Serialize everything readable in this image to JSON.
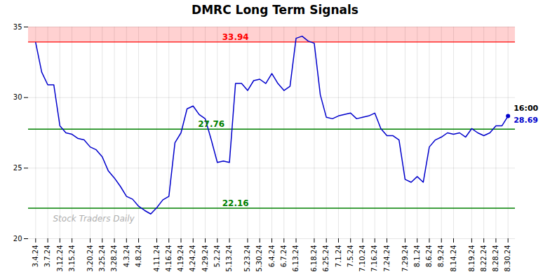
{
  "chart_data": {
    "type": "line",
    "title": "DMRC Long Term Signals",
    "categories": [
      "3.4.24",
      null,
      "3.7.24",
      null,
      "3.12.24",
      null,
      "3.15.24",
      null,
      null,
      "3.20.24",
      null,
      "3.25.24",
      null,
      "3.28.24",
      null,
      "4.3.24",
      null,
      "4.8.24",
      null,
      null,
      "4.11.24",
      null,
      "4.16.24",
      null,
      "4.19.24",
      null,
      "4.24.24",
      null,
      "4.29.24",
      null,
      "5.2.24",
      null,
      "5.13.24",
      null,
      null,
      "5.23.24",
      null,
      "5.30.24",
      null,
      "6.4.24",
      null,
      "6.7.24",
      null,
      "6.13.24",
      null,
      null,
      "6.18.24",
      null,
      "6.25.24",
      null,
      "7.1.24",
      null,
      "7.5.24",
      null,
      "7.10.24",
      null,
      "7.16.24",
      null,
      "7.24.24",
      null,
      null,
      "7.29.24",
      null,
      "8.1.24",
      null,
      "8.6.24",
      null,
      "8.9.24",
      null,
      "8.14.24",
      null,
      null,
      "8.19.24",
      null,
      "8.22.24",
      null,
      "8.28.24",
      null,
      "8.30.24"
    ],
    "values": [
      33.9,
      31.8,
      30.9,
      30.9,
      28.0,
      27.5,
      27.4,
      27.1,
      27.0,
      26.5,
      26.3,
      25.8,
      24.8,
      24.3,
      23.7,
      23.0,
      22.8,
      22.3,
      22.0,
      21.75,
      22.2,
      22.75,
      23.0,
      26.8,
      27.5,
      29.2,
      29.4,
      28.8,
      28.5,
      27.0,
      25.4,
      25.5,
      25.4,
      31.0,
      31.0,
      30.5,
      31.2,
      31.3,
      31.0,
      31.7,
      31.0,
      30.5,
      30.8,
      34.2,
      34.35,
      34.0,
      33.85,
      30.2,
      28.6,
      28.5,
      28.7,
      28.8,
      28.9,
      28.5,
      28.6,
      28.7,
      28.9,
      27.8,
      27.3,
      27.3,
      27.0,
      24.2,
      24.0,
      24.4,
      24.0,
      26.5,
      27.0,
      27.2,
      27.5,
      27.4,
      27.5,
      27.2,
      27.8,
      27.5,
      27.3,
      27.5,
      28.0,
      28.0,
      28.69
    ],
    "color": "#0000cc",
    "ylim": [
      20,
      35
    ],
    "yticks": [
      20,
      25,
      30,
      35
    ],
    "grid": true,
    "reference_lines": [
      {
        "value": 33.94,
        "color": "red",
        "label": "33.94"
      },
      {
        "value": 27.76,
        "color": "green",
        "label": "27.76"
      },
      {
        "value": 22.16,
        "color": "green",
        "label": "22.16"
      }
    ],
    "bands": [
      {
        "y1": 33.94,
        "y2": 35,
        "color": "red"
      }
    ],
    "last_point_labels": [
      "16:00",
      "28.69"
    ],
    "watermark": "Stock Traders Daily"
  }
}
